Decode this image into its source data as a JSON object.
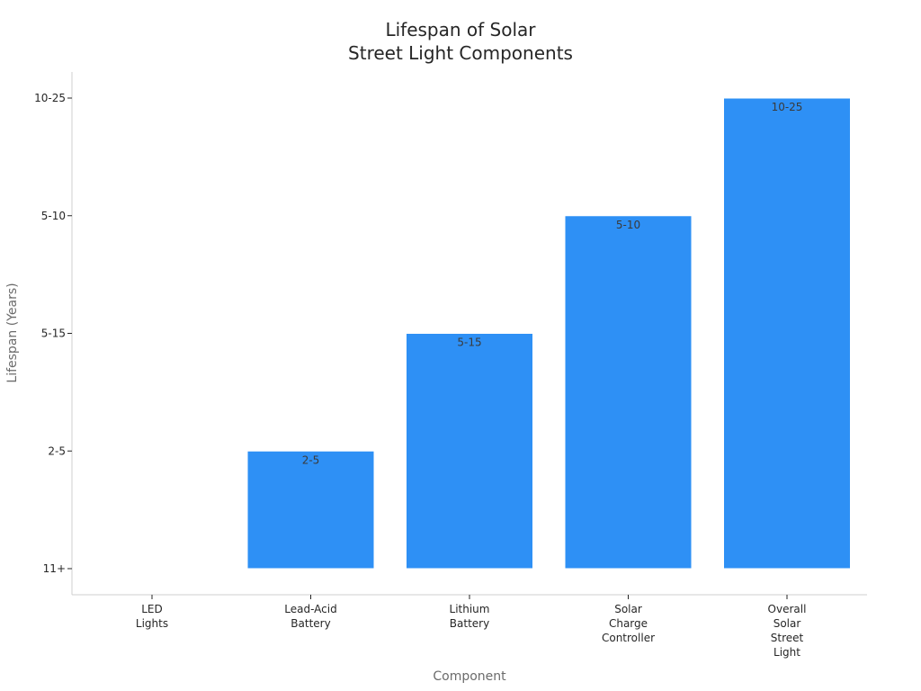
{
  "chart_data": {
    "type": "bar",
    "title": [
      "Lifespan of Solar",
      "Street Light Components"
    ],
    "xlabel": "Component",
    "ylabel": "Lifespan (Years)",
    "y_ticks": [
      "11+",
      "2-5",
      "5-15",
      "5-10",
      "10-25"
    ],
    "categories": [
      [
        "LED",
        "Lights"
      ],
      [
        "Lead-Acid",
        "Battery"
      ],
      [
        "Lithium",
        "Battery"
      ],
      [
        "Solar",
        "Charge",
        "Controller"
      ],
      [
        "Overall",
        "Solar",
        "Street",
        "Light"
      ]
    ],
    "values": [
      "11+",
      "2-5",
      "5-15",
      "5-10",
      "10-25"
    ],
    "data_labels": [
      "",
      "2-5",
      "5-15",
      "5-10",
      "10-25"
    ],
    "bar_color": "#2e90f5",
    "grid": false,
    "legend": "none"
  }
}
